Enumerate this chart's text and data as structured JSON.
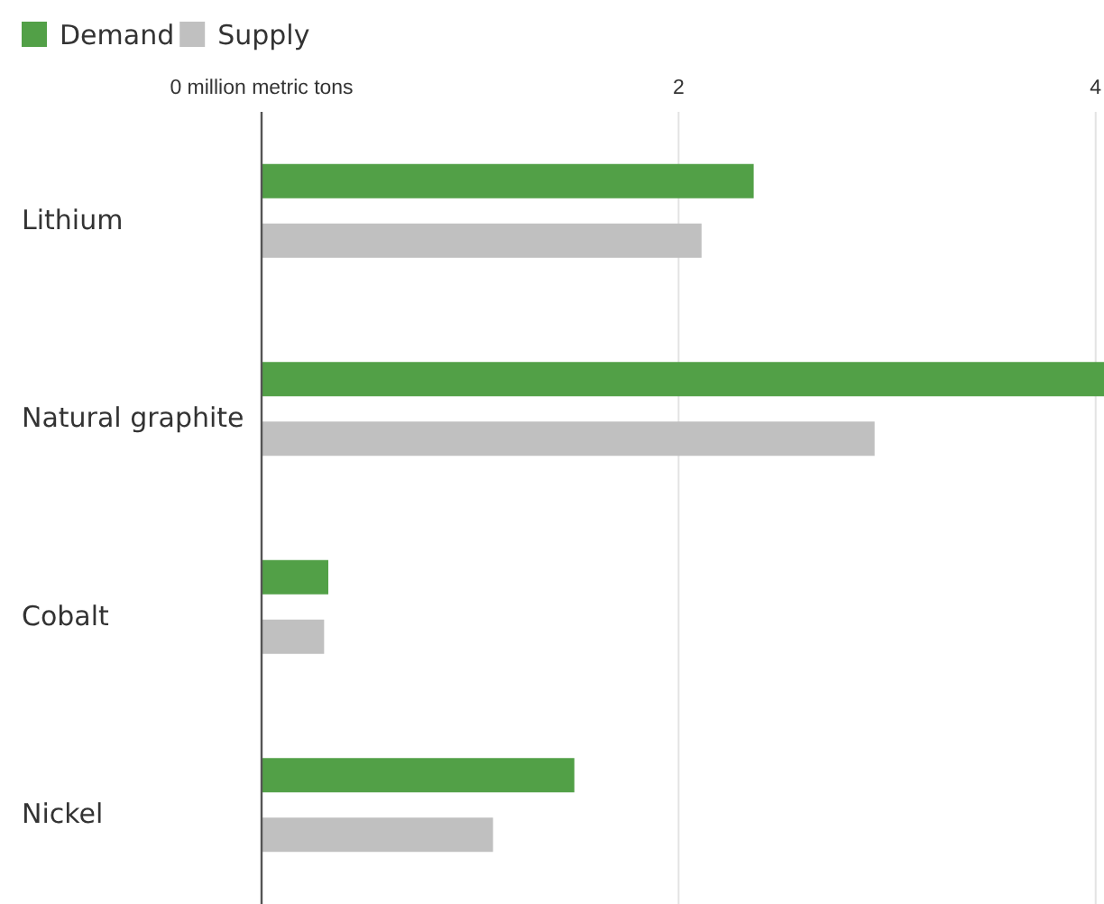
{
  "chart_data": {
    "type": "bar",
    "orientation": "horizontal",
    "categories": [
      "Lithium",
      "Natural graphite",
      "Cobalt",
      "Nickel"
    ],
    "series": [
      {
        "name": "Demand",
        "color": "#52a047",
        "values": [
          2.36,
          4.04,
          0.32,
          1.5
        ]
      },
      {
        "name": "Supply",
        "color": "#c0c0c0",
        "values": [
          2.11,
          2.94,
          0.3,
          1.11
        ]
      }
    ],
    "xlim": [
      0,
      4.04
    ],
    "xticks": [
      {
        "value": 0,
        "label": "0 million metric tons"
      },
      2,
      4
    ],
    "grid": "x",
    "legend": "top left"
  }
}
